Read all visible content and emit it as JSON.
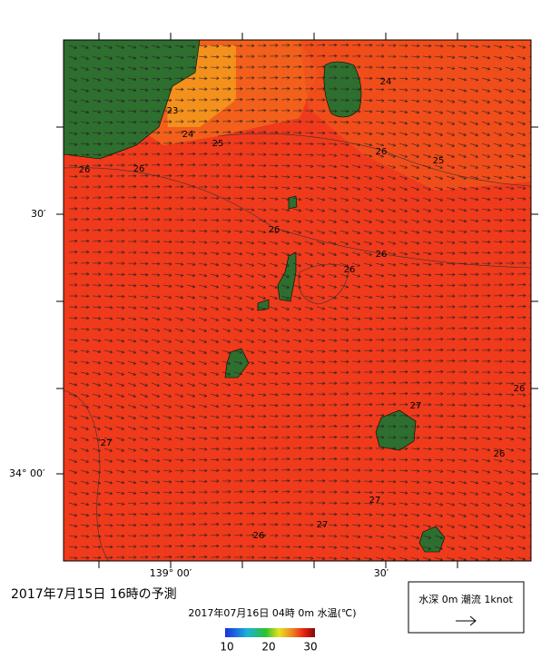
{
  "map": {
    "title": "2017年7月15日  16時の予測",
    "subtitle": "2017年07月16日 04時 0m 水温(℃)",
    "lat_labels": [
      "30′",
      "34° 00′"
    ],
    "lon_labels": [
      "139° 00′",
      "30′"
    ],
    "contour_labels": [
      "23",
      "24",
      "24",
      "25",
      "25",
      "26",
      "26",
      "26",
      "26",
      "26",
      "26",
      "26",
      "26",
      "27",
      "27",
      "27",
      "27",
      "26"
    ],
    "colorbar": {
      "ticks": [
        10,
        20,
        30
      ]
    },
    "legend": "水深 0m 潮流 1knot"
  }
}
